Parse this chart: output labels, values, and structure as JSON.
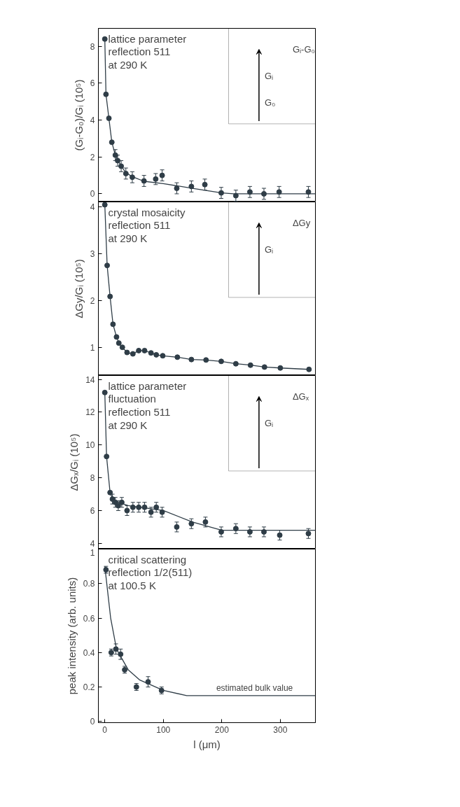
{
  "chart_data": [
    {
      "type": "scatter",
      "title": "lattice parameter\nreflection 511\nat 290 K",
      "ylabel": "(Gᵢ-G₀)/Gᵢ (10⁵)",
      "tick_labels": "y",
      "xlim": [
        -11,
        360
      ],
      "xticks": [
        0,
        100,
        200,
        300
      ],
      "ylim": [
        -0.44,
        8.98
      ],
      "yticks": [
        0,
        2,
        4,
        6,
        8
      ],
      "annotations": [
        "Gᵢ-G₀",
        "Gᵢ",
        "G₀"
      ],
      "series": [
        {
          "marker": "circle",
          "color": "#2f3d47",
          "x": [
            0,
            2,
            7,
            12,
            18,
            22,
            28,
            36,
            47,
            67,
            87,
            98,
            123,
            148,
            171,
            199,
            224,
            248,
            272,
            298,
            348
          ],
          "values": [
            8.4,
            5.4,
            4.1,
            2.8,
            2.1,
            1.8,
            1.5,
            1.1,
            0.9,
            0.7,
            0.8,
            1.0,
            0.3,
            0.4,
            0.5,
            0.05,
            -0.1,
            0.1,
            0.0,
            0.1,
            0.1
          ],
          "errors": [
            null,
            null,
            null,
            null,
            0.3,
            0.3,
            0.3,
            0.3,
            0.3,
            0.3,
            0.3,
            0.3,
            0.3,
            0.3,
            0.3,
            0.3,
            0.3,
            0.3,
            0.3,
            0.3,
            0.3
          ]
        },
        {
          "type": "line",
          "color": "#2f3d47",
          "x": [
            0,
            2,
            7,
            12,
            18,
            28,
            36,
            47,
            67,
            100,
            150,
            200,
            220,
            360
          ],
          "values": [
            8.4,
            5.4,
            4.1,
            2.8,
            2.1,
            1.5,
            1.15,
            0.93,
            0.68,
            0.55,
            0.3,
            0.05,
            0.0,
            0.0
          ]
        }
      ]
    },
    {
      "type": "line",
      "title": "crystal mosaicity\nreflection 511\nat 290 K",
      "ylabel": "ΔGy/Gᵢ (10⁵)",
      "tick_labels": "y",
      "xlim": [
        -11,
        360
      ],
      "xticks": [
        0,
        100,
        200,
        300
      ],
      "ylim": [
        0.41,
        4.1
      ],
      "yticks": [
        1,
        2,
        3,
        4
      ],
      "annotations": [
        "ΔGy",
        "Gᵢ"
      ],
      "series": [
        {
          "marker": "circle",
          "color": "#2f3d47",
          "x": [
            0,
            4,
            9,
            14,
            20,
            24,
            30,
            38,
            48,
            58,
            68,
            79,
            88,
            99,
            124,
            148,
            173,
            199,
            224,
            249,
            273,
            300,
            349
          ],
          "values": [
            4.04,
            2.75,
            2.09,
            1.5,
            1.23,
            1.1,
            1.01,
            0.9,
            0.87,
            0.94,
            0.94,
            0.89,
            0.85,
            0.83,
            0.8,
            0.75,
            0.74,
            0.71,
            0.66,
            0.63,
            0.59,
            0.57,
            0.54
          ]
        }
      ]
    },
    {
      "type": "scatter",
      "title": "lattice parameter\nfluctuation\nreflection 511\nat 290 K",
      "ylabel": "ΔGₓ/Gᵢ (10⁵)",
      "tick_labels": "y",
      "xlim": [
        -11,
        360
      ],
      "xticks": [
        0,
        100,
        200,
        300
      ],
      "ylim": [
        3.65,
        14.24
      ],
      "yticks": [
        4,
        6,
        8,
        10,
        12,
        14
      ],
      "annotations": [
        "ΔGₓ",
        "Gᵢ"
      ],
      "series": [
        {
          "marker": "circle",
          "color": "#2f3d47",
          "x": [
            0,
            3,
            9,
            13,
            18,
            23,
            29,
            38,
            48,
            58,
            68,
            79,
            88,
            98,
            123,
            148,
            172,
            199,
            224,
            248,
            272,
            299,
            348
          ],
          "values": [
            13.2,
            9.3,
            7.1,
            6.7,
            6.5,
            6.3,
            6.5,
            6.0,
            6.2,
            6.2,
            6.2,
            5.9,
            6.2,
            5.9,
            5.0,
            5.2,
            5.3,
            4.7,
            4.9,
            4.7,
            4.7,
            4.5,
            4.6
          ],
          "errors": [
            null,
            null,
            null,
            0.3,
            0.3,
            0.3,
            0.3,
            0.3,
            0.3,
            0.3,
            0.3,
            0.3,
            0.3,
            0.3,
            0.3,
            0.3,
            0.3,
            0.3,
            0.3,
            0.3,
            0.3,
            0.3,
            0.3
          ]
        },
        {
          "type": "line",
          "color": "#2f3d47",
          "x": [
            0,
            3,
            9,
            15,
            40,
            100,
            150,
            200,
            360
          ],
          "values": [
            13.2,
            9.3,
            7.1,
            6.6,
            6.3,
            6.0,
            5.3,
            4.8,
            4.8
          ]
        }
      ]
    },
    {
      "type": "scatter",
      "title": "critical scattering\nreflection 1/2(511)\nat 100.5 K",
      "xlabel": "l (μm)",
      "ylabel": "peak intensity (arb. units)",
      "xlim": [
        -11,
        360
      ],
      "xticks": [
        0,
        100,
        200,
        300
      ],
      "ylim": [
        -0.007,
        1
      ],
      "yticks": [
        0,
        0.2,
        0.4,
        0.6,
        0.8,
        1
      ],
      "annotations": [
        {
          "text": "estimated bulk value",
          "x": 256,
          "y": 0.15
        }
      ],
      "series": [
        {
          "marker": "circle",
          "color": "#2f3d47",
          "x": [
            2,
            11,
            19,
            27,
            34,
            54,
            74,
            97
          ],
          "values": [
            0.88,
            0.4,
            0.42,
            0.39,
            0.3,
            0.2,
            0.23,
            0.18
          ],
          "errors": [
            0.02,
            0.02,
            0.03,
            0.03,
            0.02,
            0.02,
            0.03,
            0.02
          ]
        },
        {
          "type": "line",
          "color": "#2f3d47",
          "x": [
            0,
            10,
            20,
            40,
            60,
            100,
            140,
            360
          ],
          "values": [
            0.9,
            0.6,
            0.42,
            0.3,
            0.24,
            0.18,
            0.15,
            0.15
          ]
        }
      ]
    }
  ]
}
